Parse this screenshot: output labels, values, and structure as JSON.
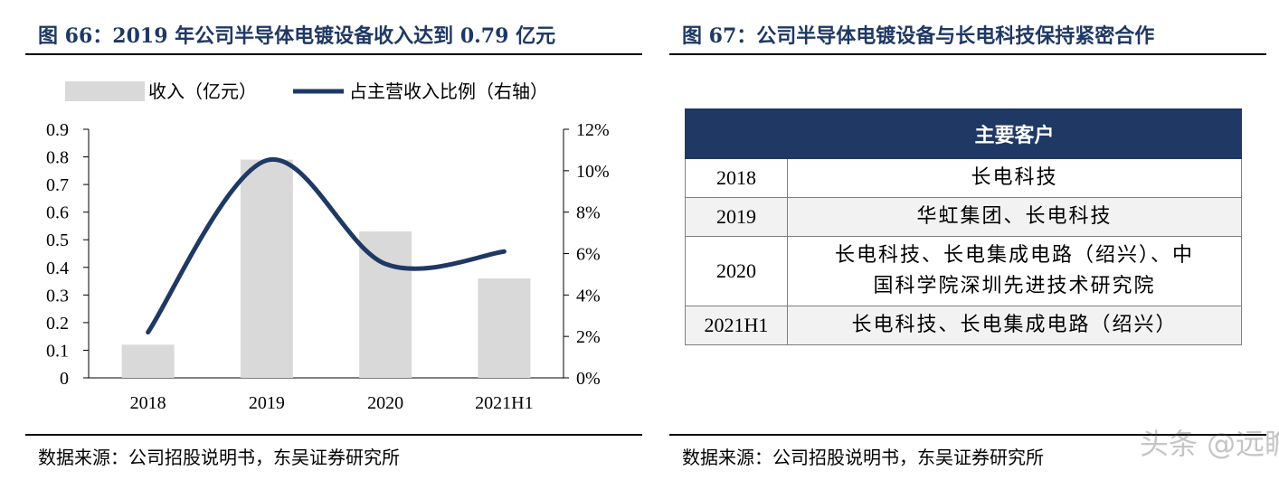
{
  "left": {
    "title": "图 66：2019 年公司半导体电镀设备收入达到 0.79 亿元",
    "source": "数据来源：公司招股说明书，东吴证券研究所"
  },
  "right": {
    "title": "图 67：公司半导体电镀设备与长电科技保持紧密合作",
    "source": "数据来源：公司招股说明书，东吴证券研究所",
    "table": {
      "header_blank": "",
      "header": "主要客户",
      "rows": [
        {
          "year": "2018",
          "lines": [
            "长电科技"
          ]
        },
        {
          "year": "2019",
          "lines": [
            "华虹集团、长电科技"
          ]
        },
        {
          "year": "2020",
          "lines": [
            "长电科技、长电集成电路（绍兴）、中",
            "国科学院深圳先进技术研究院"
          ]
        },
        {
          "year": "2021H1",
          "lines": [
            "长电科技、长电集成电路（绍兴）"
          ]
        }
      ]
    },
    "watermark": "头条 @远瞻智库"
  },
  "chart_data": {
    "type": "bar",
    "categories": [
      "2018",
      "2019",
      "2020",
      "2021H1"
    ],
    "series": [
      {
        "name": "收入（亿元）",
        "type": "bar",
        "axis": "left",
        "values": [
          0.12,
          0.79,
          0.53,
          0.36
        ],
        "color": "#d9d9d9"
      },
      {
        "name": "占主营收入比例（右轴）",
        "type": "line",
        "axis": "right",
        "values": [
          2.2,
          10.5,
          5.5,
          6.1
        ],
        "color": "#1f3864"
      }
    ],
    "y_left": {
      "min": 0,
      "max": 0.9,
      "ticks": [
        "0",
        "0.1",
        "0.2",
        "0.3",
        "0.4",
        "0.5",
        "0.6",
        "0.7",
        "0.8",
        "0.9"
      ]
    },
    "y_right": {
      "min": 0,
      "max": 12,
      "ticks": [
        "0%",
        "2%",
        "4%",
        "6%",
        "8%",
        "10%",
        "12%"
      ]
    },
    "legend_position": "top",
    "grid": false
  }
}
